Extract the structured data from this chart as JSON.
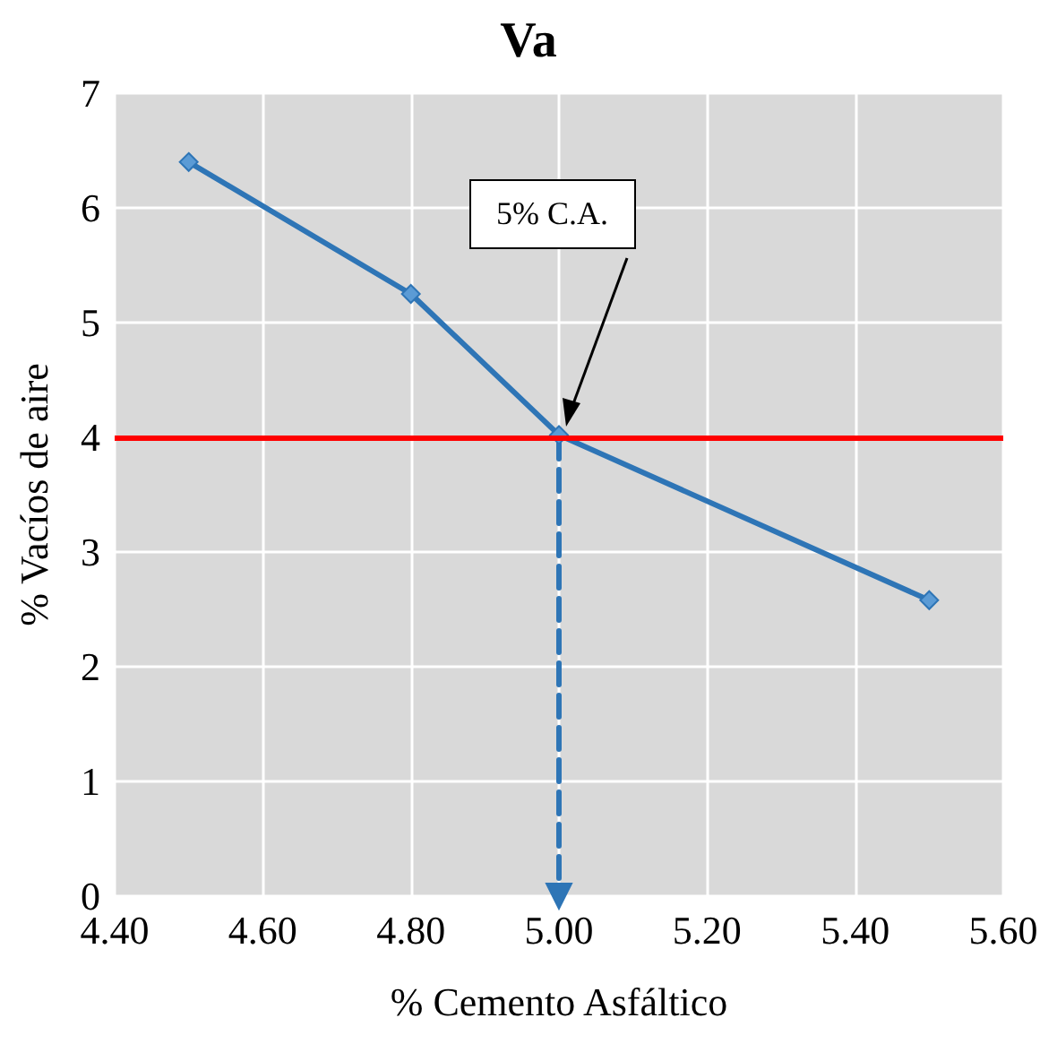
{
  "chart_data": {
    "type": "line",
    "title": "Va",
    "xlabel": "% Cemento Asfáltico",
    "ylabel": "% Vacíos de aire",
    "xlim": [
      4.4,
      5.6
    ],
    "xticks": [
      {
        "value": 4.4,
        "label": "4.40"
      },
      {
        "value": 4.6,
        "label": "4.60"
      },
      {
        "value": 4.8,
        "label": "4.80"
      },
      {
        "value": 5.0,
        "label": "5.00"
      },
      {
        "value": 5.2,
        "label": "5.20"
      },
      {
        "value": 5.4,
        "label": "5.40"
      },
      {
        "value": 5.6,
        "label": "5.60"
      }
    ],
    "ylim": [
      0,
      7
    ],
    "yticks": [
      0,
      1,
      2,
      3,
      4,
      5,
      6,
      7
    ],
    "grid": true,
    "series": [
      {
        "color": "#2e75b6",
        "x": [
          4.5,
          4.8,
          5.0,
          5.5
        ],
        "values": [
          6.4,
          5.25,
          4.02,
          2.58
        ],
        "marker": "diamond",
        "line_style": "solid"
      },
      {
        "color": "#2e75b6",
        "x": [
          5.0,
          5.0
        ],
        "values": [
          4.0,
          0.0
        ],
        "marker": "triangle",
        "line_style": "dashed"
      }
    ],
    "ref_lines": [
      {
        "axis": "y",
        "value": 4,
        "color": "#ff0000",
        "line_style": "solid"
      }
    ],
    "annotations": [
      "5% C.A."
    ]
  }
}
